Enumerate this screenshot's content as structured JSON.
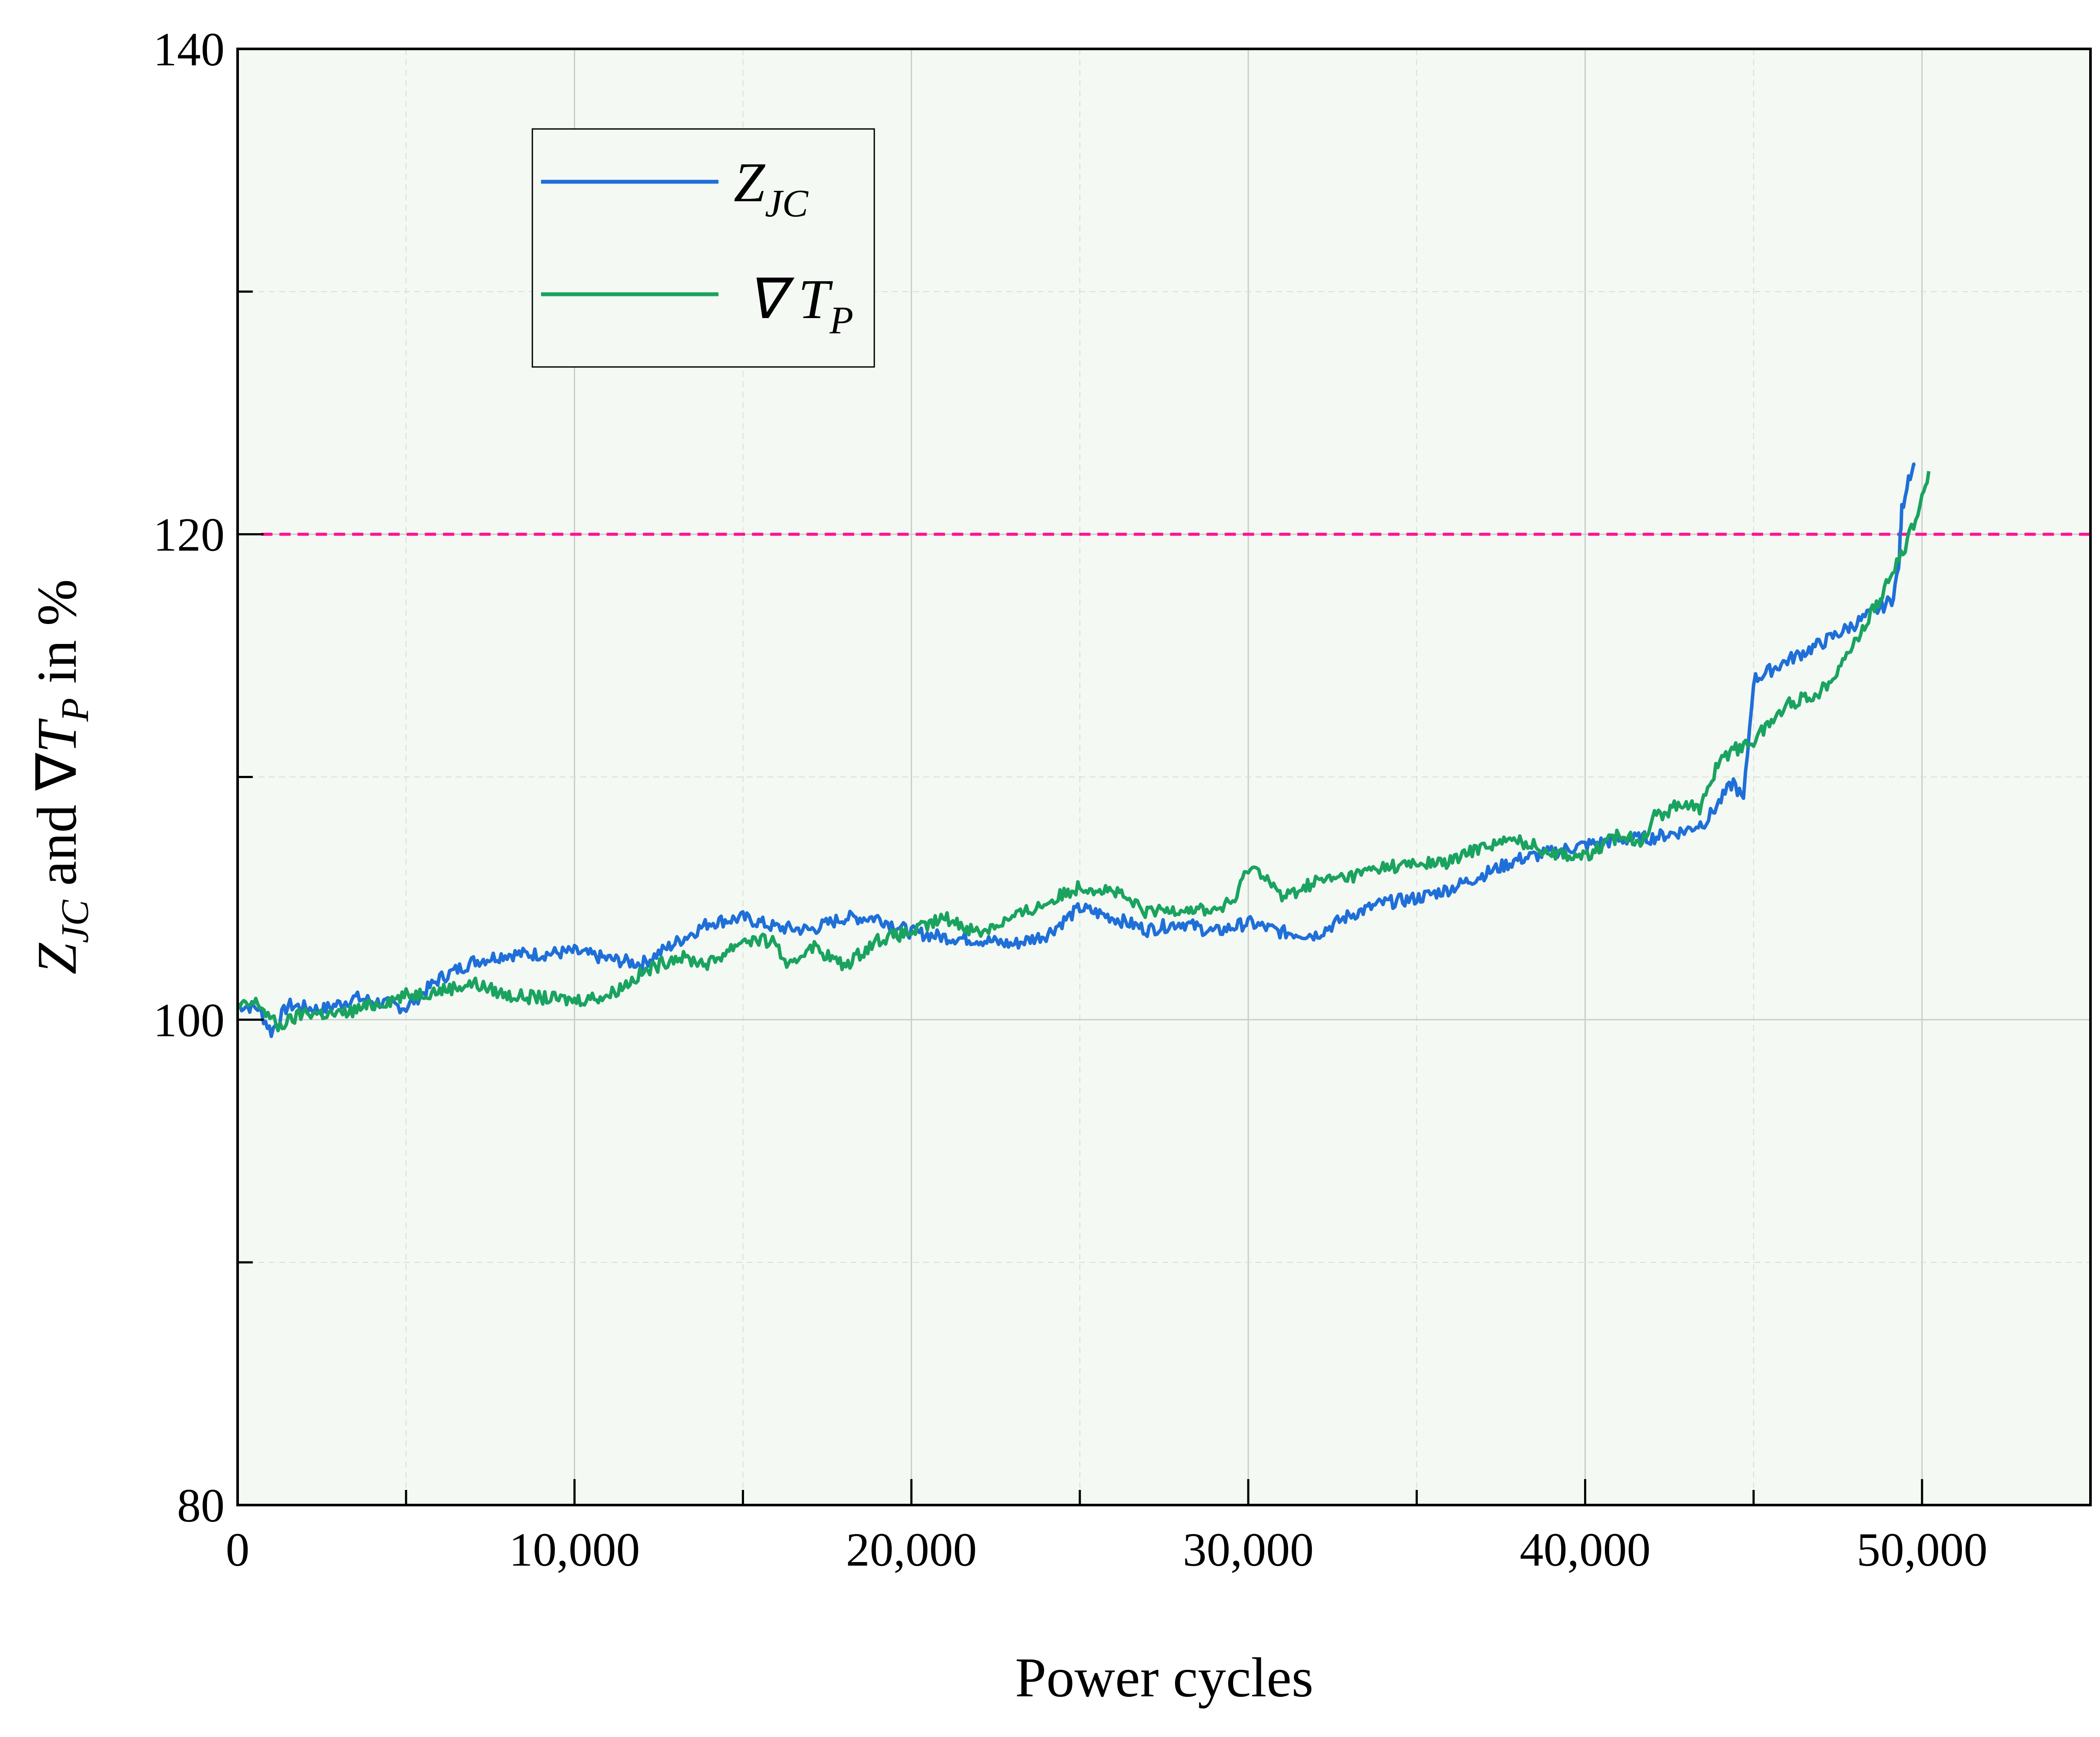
{
  "chart_data": {
    "type": "line",
    "xlabel": "Power cycles",
    "ylabel": {
      "main": "Z",
      "sub": "JC",
      "mid": " and ∇",
      "main2": "T",
      "sub2": "P",
      "tail": " in %"
    },
    "xlim": [
      0,
      55000
    ],
    "ylim": [
      80,
      140
    ],
    "x_ticks": [
      0,
      10000,
      20000,
      30000,
      40000,
      50000
    ],
    "x_tick_labels": [
      "0",
      "10,000",
      "20,000",
      "30,000",
      "40,000",
      "50,000"
    ],
    "y_ticks": [
      80,
      100,
      120,
      140
    ],
    "y_tick_labels": [
      "80",
      "100",
      "120",
      "140"
    ],
    "grid": true,
    "plot_background": "#f4f9f4",
    "threshold": {
      "y": 120,
      "x_start": 700,
      "color": "#ff1493",
      "style": "dashed"
    },
    "legend": {
      "placement": "top-left",
      "entries": [
        {
          "main": "Z",
          "sub": "JC",
          "color": "#1f6fd8"
        },
        {
          "main": "∇ T",
          "sub": "P",
          "color": "#1aa35f"
        }
      ]
    },
    "series": [
      {
        "color": "#1f6fd8",
        "x": [
          0,
          600,
          1000,
          1500,
          2500,
          3500,
          5000,
          6000,
          7000,
          8000,
          9000,
          10000,
          11000,
          12000,
          12800,
          14000,
          15000,
          16000,
          17000,
          18000,
          19000,
          20000,
          21000,
          22000,
          23000,
          24000,
          25000,
          26000,
          27000,
          28000,
          29000,
          30000,
          31000,
          32000,
          33000,
          34000,
          35000,
          36000,
          37000,
          38000,
          39000,
          40000,
          41000,
          42000,
          43000,
          43600,
          44400,
          44700,
          45000,
          46000,
          47000,
          48000,
          48800,
          49100,
          49300,
          49400,
          49600,
          49800
        ],
        "values": [
          100.6,
          100.5,
          99.5,
          100.6,
          100.4,
          100.9,
          100.5,
          101.7,
          102.4,
          102.7,
          102.7,
          102.8,
          102.5,
          102.3,
          103.0,
          104.0,
          104.2,
          103.8,
          103.7,
          104.2,
          104.2,
          103.6,
          103.4,
          103.3,
          103.1,
          103.5,
          104.6,
          104.2,
          103.7,
          104.0,
          103.6,
          104.0,
          103.6,
          103.5,
          104.3,
          104.8,
          105.0,
          105.4,
          106.0,
          106.6,
          106.9,
          107.2,
          107.4,
          107.5,
          107.8,
          108.2,
          109.8,
          109.0,
          114.0,
          114.8,
          115.5,
          116.3,
          117.0,
          117.3,
          118.5,
          121.0,
          122.4,
          122.9
        ]
      },
      {
        "color": "#1aa35f",
        "x": [
          0,
          600,
          1200,
          2000,
          3000,
          4000,
          5000,
          6000,
          7000,
          8000,
          9000,
          10000,
          11000,
          12000,
          13000,
          14000,
          15000,
          16000,
          16300,
          17000,
          18000,
          19000,
          20000,
          21000,
          22000,
          23000,
          24000,
          25000,
          26000,
          27000,
          28000,
          29000,
          29600,
          30000,
          30500,
          31000,
          32000,
          33000,
          34000,
          35000,
          36000,
          37000,
          38000,
          39000,
          40000,
          41000,
          41700,
          42000,
          43000,
          43400,
          44000,
          45000,
          46000,
          47000,
          48000,
          49000,
          49500,
          50000,
          50200
        ],
        "values": [
          100.5,
          100.7,
          99.7,
          100.3,
          100.2,
          100.6,
          101.0,
          101.2,
          101.5,
          101.0,
          100.9,
          100.8,
          101.0,
          101.9,
          102.6,
          102.3,
          103.3,
          103.2,
          102.0,
          103.1,
          102.2,
          103.3,
          103.6,
          104.2,
          103.6,
          104.2,
          104.8,
          105.5,
          105.3,
          104.4,
          104.6,
          104.5,
          104.9,
          106.3,
          106.0,
          105.0,
          105.7,
          105.9,
          106.3,
          106.4,
          106.5,
          107.2,
          107.4,
          106.9,
          106.7,
          107.6,
          107.4,
          108.3,
          109.0,
          108.6,
          110.8,
          111.5,
          113.0,
          113.5,
          115.5,
          118.0,
          119.5,
          121.4,
          122.6
        ]
      }
    ]
  }
}
